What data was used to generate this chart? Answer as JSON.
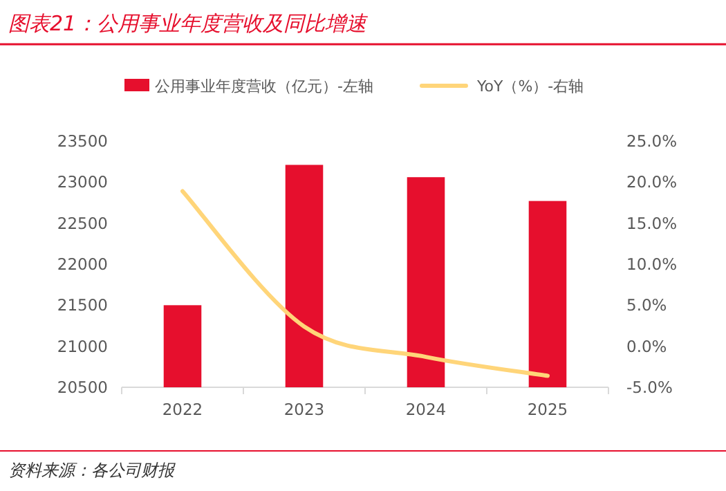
{
  "chart_data": {
    "type": "bar",
    "title": "图表21：公用事业年度营收及同比增速",
    "categories": [
      "2022",
      "2023",
      "2024",
      "2025"
    ],
    "series": [
      {
        "name": "公用事业年度营收（亿元）-左轴",
        "color": "#e60f2d",
        "values": [
          21500,
          23210,
          23060,
          22770
        ]
      },
      {
        "name": "YoY（%）-右轴",
        "color": "#ffd579",
        "type": "line",
        "axis": "y2",
        "values": [
          18.9,
          2.4,
          -1.3,
          -3.6
        ]
      }
    ],
    "ylim": [
      20500,
      23500
    ],
    "yticks": [
      20500,
      21000,
      21500,
      22000,
      22500,
      23000,
      23500
    ],
    "y2lim": [
      -5,
      25
    ],
    "y2ticks": [
      {
        "value": -5,
        "label": "-5.0%"
      },
      {
        "value": 0,
        "label": "0.0%"
      },
      {
        "value": 5,
        "label": "5.0%"
      },
      {
        "value": 10,
        "label": "10.0%"
      },
      {
        "value": 15,
        "label": "15.0%"
      },
      {
        "value": 20,
        "label": "20.0%"
      },
      {
        "value": 25,
        "label": "25.0%"
      }
    ],
    "legend": "top",
    "annotations": [
      "资料来源：各公司财报"
    ]
  }
}
